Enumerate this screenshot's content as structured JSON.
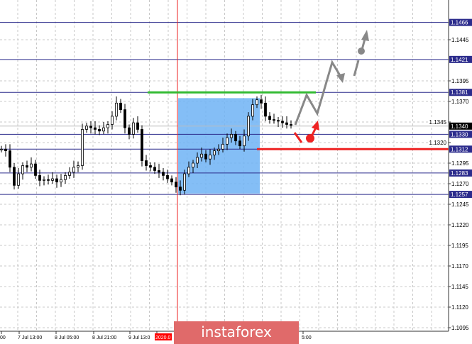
{
  "chart_data": {
    "type": "candlestick",
    "symbol_scale": "price",
    "ylim": [
      1.1088,
      1.148
    ],
    "y_ticks": [
      "1.1445",
      "1.1395",
      "1.1370",
      "1.1345",
      "1.1320",
      "1.1295",
      "1.1270",
      "1.1245",
      "1.1220",
      "1.1195",
      "1.1170",
      "1.1145",
      "1.1120",
      "1.1095"
    ],
    "x_tick_labels": [
      "00",
      "7 Jul 13:00",
      "8 Jul 05:00",
      "8 Jul 21:00",
      "9 Jul 13:0",
      "2020.0",
      "5:00"
    ],
    "closes": [
      1.1312,
      1.131,
      1.129,
      1.1268,
      1.1282,
      1.1292,
      1.129,
      1.1294,
      1.128,
      1.1274,
      1.1275,
      1.1274,
      1.1276,
      1.1272,
      1.1275,
      1.128,
      1.1284,
      1.129,
      1.1292,
      1.1336,
      1.134,
      1.1338,
      1.1336,
      1.1334,
      1.1338,
      1.1342,
      1.1352,
      1.1368,
      1.136,
      1.1338,
      1.133,
      1.1344,
      1.1336,
      1.1298,
      1.1292,
      1.129,
      1.1286,
      1.1284,
      1.128,
      1.1276,
      1.1272,
      1.1266,
      1.1262,
      1.1282,
      1.129,
      1.1295,
      1.1302,
      1.1306,
      1.13,
      1.1305,
      1.131,
      1.1312,
      1.1318,
      1.1326,
      1.133,
      1.1322,
      1.1316,
      1.1328,
      1.1352,
      1.1366,
      1.1372,
      1.1368,
      1.1352,
      1.1348,
      1.1347,
      1.1346,
      1.1344,
      1.1342,
      1.1341
    ],
    "levels": [
      {
        "label": "1.1466",
        "price": 1.1466
      },
      {
        "label": "1.1421",
        "price": 1.1421
      },
      {
        "label": "1.1381",
        "price": 1.1381
      },
      {
        "label": "1.1330",
        "price": 1.133
      },
      {
        "label": "1.1312",
        "price": 1.1312
      },
      {
        "label": "1.1283",
        "price": 1.1283
      },
      {
        "label": "1.1257",
        "price": 1.1257
      }
    ],
    "current_price": {
      "label": "1.1340",
      "price": 1.134
    },
    "resistance_green": 1.1381,
    "support_red": 1.1312,
    "highlight_zone": [
      1.1258,
      1.1374
    ],
    "grid": true
  },
  "colors": {
    "level": "#2b2b8c",
    "green": "#33bb33",
    "red": "#ee2222",
    "zone": "#6fb3f5",
    "arrow": "#888888",
    "watermark": "#e06a6a"
  },
  "watermark": "instaforex"
}
